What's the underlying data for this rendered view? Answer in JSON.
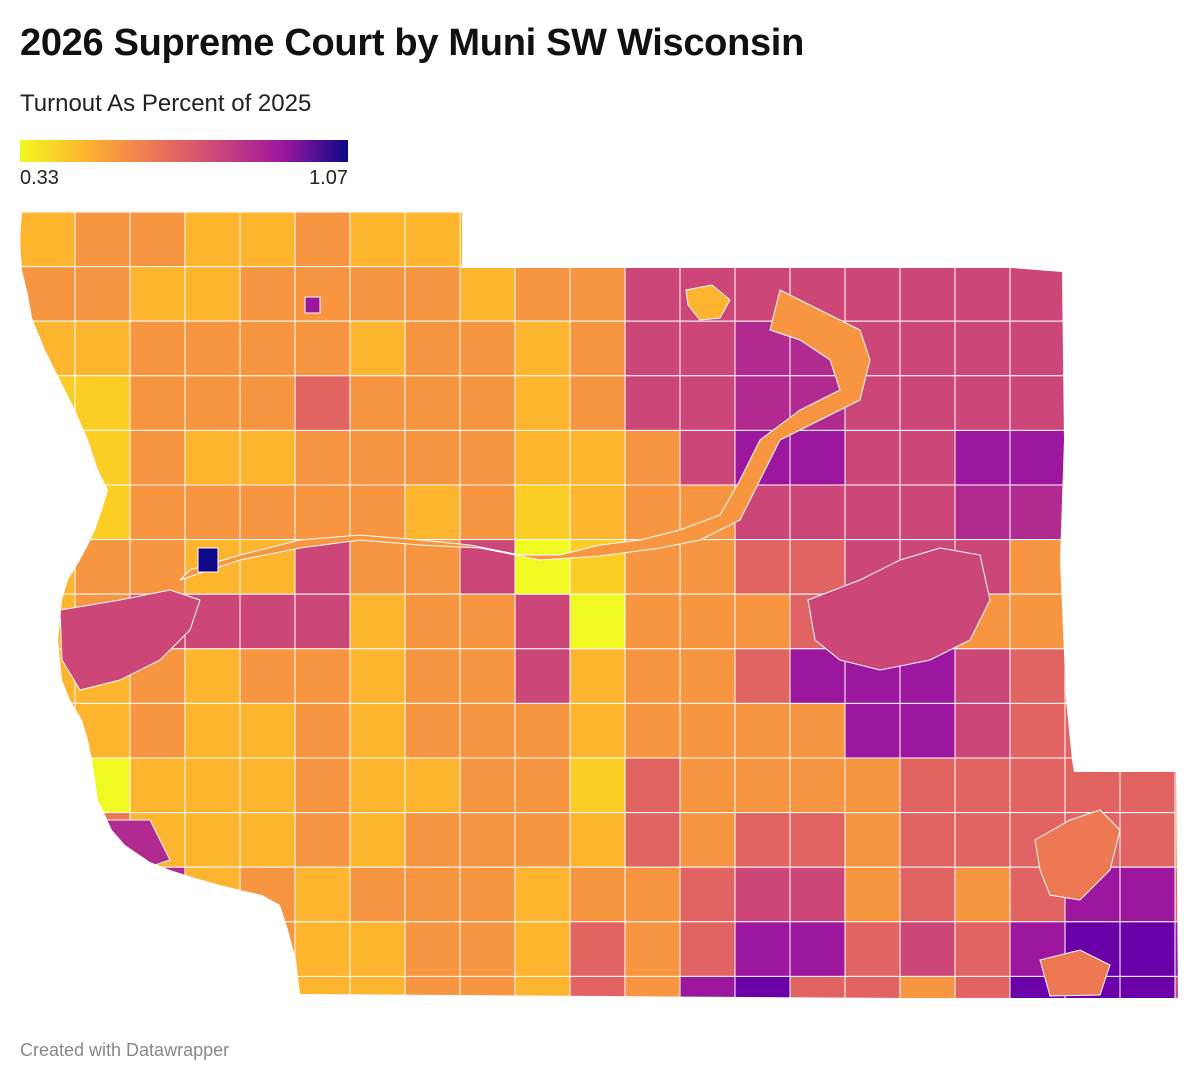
{
  "title": "2026 Supreme Court by Muni SW Wisconsin",
  "subtitle": "Turnout As Percent of 2025",
  "legend": {
    "min_label": "0.33",
    "max_label": "1.07",
    "min": 0.33,
    "max": 1.07,
    "scale": "plasma (yellow to dark blue)"
  },
  "footer": "Created with Datawrapper",
  "colors": {
    "yellow": "#f0f921",
    "light_orange": "#fdb42f",
    "orange": "#ed7953",
    "pink": "#cc4778",
    "purple": "#9c179e",
    "dark_blue": "#0d0887",
    "border": "#ffffff"
  }
}
